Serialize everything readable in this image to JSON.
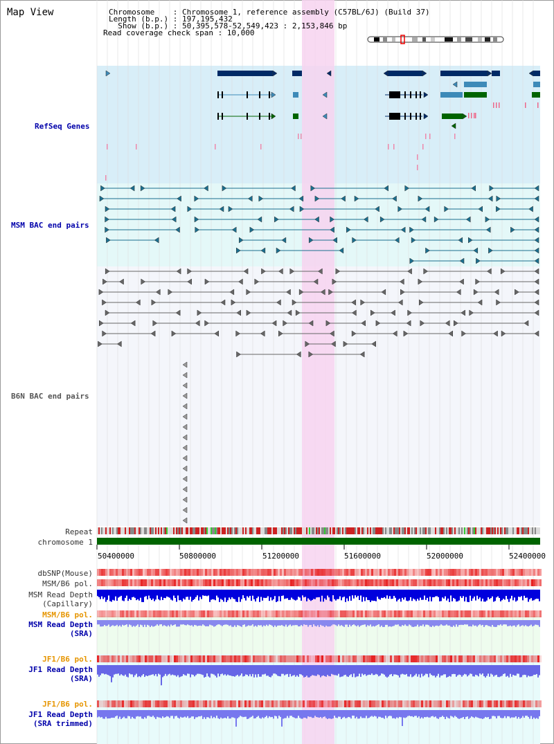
{
  "title": "Map View",
  "info": {
    "line1": "Chromosome    : Chromosome 1, reference assembly (C57BL/6J) (Build 37)",
    "line2": "Length (b.p.) : 197,195,432",
    "line3": "  Show (b.p.) : 50,395,578-52,549,423 : 2,153,846 bp",
    "line4": "Read coverage check span : 10,000"
  },
  "tracks": {
    "refseq": "RefSeq Genes",
    "msm_bac": "MSM BAC end pairs",
    "b6n_bac": "B6N BAC end pairs",
    "repeat": "Repeat",
    "chromosome": "chromosome 1",
    "dbsnp": "dbSNP(Mouse)",
    "msm_b6_pol": "MSM/B6 pol.",
    "msm_depth_cap_1": "MSM Read Depth",
    "msm_depth_cap_2": "(Capillary)",
    "msm_b6_pol_sra": "MSM/B6 pol.",
    "msm_depth_sra_1": "MSM Read Depth",
    "msm_depth_sra_2": "(SRA)",
    "jf1_pol_1": "JF1/B6 pol.",
    "jf1_depth_1": "JF1 Read Depth",
    "jf1_depth_1b": "(SRA)",
    "jf1_pol_2": "JF1/B6 pol.",
    "jf1_depth_2": "JF1 Read Depth",
    "jf1_depth_2b": "(SRA trimmed)"
  },
  "axis": {
    "ticks": [
      "50400000",
      "50800000",
      "51200000",
      "51600000",
      "52000000",
      "52400000"
    ]
  },
  "colors": {
    "highlight": "#f7d4f0",
    "refseq_bg": "#d8eef8",
    "msm_bg": "#e4f8f8",
    "b6n_bg": "#f4f6fb",
    "gene_dark": "#002a66",
    "gene_mid": "#3d8ab8",
    "gene_green": "#006400",
    "bac_msm": "#1a6e8e",
    "bac_b6n": "#666666"
  }
}
